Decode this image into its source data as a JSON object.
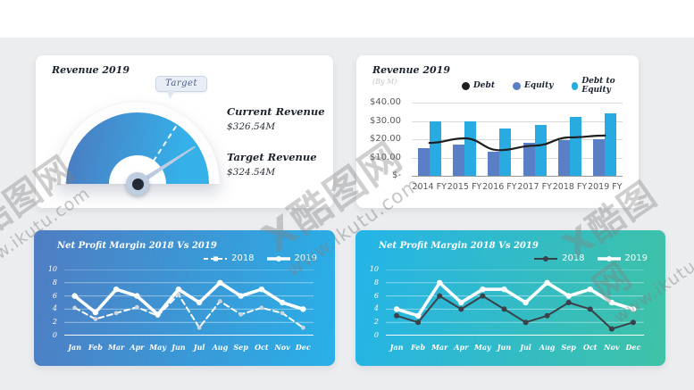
{
  "page": {
    "background": "#ecedef",
    "top_band": "#ffffff"
  },
  "watermark": {
    "brand": "X酷图网",
    "site": "www.ikutu.com"
  },
  "chart_data": [
    {
      "type": "gauge",
      "panel": "top-left",
      "title": "Revenue 2019",
      "callout_label": "Target",
      "metrics": [
        {
          "label": "Current Revenue",
          "value": "$326.54M"
        },
        {
          "label": "Target Revenue",
          "value": "$324.54M"
        }
      ],
      "needle_angle_deg": 33,
      "target_angle_deg": 57,
      "arc_gradient": [
        "#4a7dc2",
        "#35b0e8"
      ]
    },
    {
      "type": "bar",
      "panel": "top-right",
      "title": "Revenue 2019",
      "subtitle": "(By M)",
      "categories": [
        "2014 FY",
        "2015 FY",
        "2016 FY",
        "2017 FY",
        "2018 FY",
        "2019 FY"
      ],
      "series": [
        {
          "name": "Debt",
          "type": "line",
          "color": "#1f1f1f",
          "values": [
            18,
            20.5,
            14,
            16.5,
            21,
            22
          ]
        },
        {
          "name": "Equity",
          "type": "bar",
          "color": "#5b7fc4",
          "values": [
            15,
            17,
            13,
            18,
            19.5,
            20
          ]
        },
        {
          "name": "Debt to Equity",
          "type": "bar",
          "color": "#29abe2",
          "values": [
            30,
            30,
            26,
            28,
            32,
            34
          ]
        }
      ],
      "ylim": [
        0,
        40
      ],
      "yticks": [
        {
          "value": 40,
          "label": "$40.00"
        },
        {
          "value": 30,
          "label": "$30.00"
        },
        {
          "value": 20,
          "label": "$20.00"
        },
        {
          "value": 10,
          "label": "$10.00"
        },
        {
          "value": 0,
          "label": "$-"
        }
      ],
      "legend_position": "top",
      "grid": true
    },
    {
      "type": "line",
      "panel": "bottom-left",
      "title": "Net Profit Margin 2018 Vs 2019",
      "categories": [
        "Jan",
        "Feb",
        "Mar",
        "Apr",
        "May",
        "Jun",
        "Jul",
        "Aug",
        "Sep",
        "Oct",
        "Nov",
        "Dec"
      ],
      "series": [
        {
          "name": "2018",
          "color": "#ffffff",
          "style": "dashed",
          "width": 2,
          "marker_color": "#cdd5e0",
          "marker_r": 2.4,
          "values": [
            4.2,
            2.5,
            3.4,
            4.3,
            3.0,
            6.2,
            1.2,
            5.2,
            3.2,
            4.2,
            3.4,
            1.2
          ]
        },
        {
          "name": "2019",
          "color": "#ffffff",
          "style": "solid",
          "width": 3.6,
          "marker_color": "#ffffff",
          "marker_r": 3.2,
          "values": [
            6,
            3.5,
            7,
            6,
            3.2,
            7,
            5,
            8,
            6,
            7,
            5,
            4
          ]
        }
      ],
      "ylim": [
        0,
        10
      ],
      "yticks": [
        10,
        8,
        6,
        4,
        2,
        0
      ],
      "legend_position": "top-right",
      "background_gradient": [
        "#4f7dc2",
        "#29b0e8"
      ]
    },
    {
      "type": "line",
      "panel": "bottom-right",
      "title": "Net Profit Margin 2018 Vs 2019",
      "categories": [
        "Jan",
        "Feb",
        "Mar",
        "Apr",
        "May",
        "Jun",
        "Jul",
        "Aug",
        "Sep",
        "Oct",
        "Nov",
        "Dec"
      ],
      "series": [
        {
          "name": "2018",
          "color": "#3a4148",
          "style": "solid",
          "width": 2,
          "marker_color": "#3a4148",
          "marker_r": 3,
          "values": [
            3,
            2,
            6,
            4,
            6,
            4,
            2,
            3,
            5,
            4,
            1,
            2
          ]
        },
        {
          "name": "2019",
          "color": "#ffffff",
          "style": "solid",
          "width": 3.6,
          "marker_color": "#ffffff",
          "marker_r": 3.2,
          "values": [
            4,
            3,
            8,
            5,
            7,
            7,
            5,
            8,
            6,
            7,
            5,
            4
          ]
        }
      ],
      "ylim": [
        0,
        10
      ],
      "yticks": [
        10,
        8,
        6,
        4,
        2,
        0
      ],
      "legend_position": "top-right",
      "background_gradient": [
        "#24b4e8",
        "#3fc2a6"
      ]
    }
  ]
}
